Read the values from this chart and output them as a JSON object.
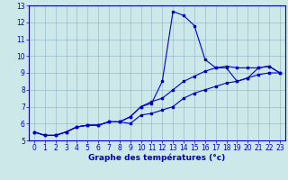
{
  "title": "Graphe des températures (°c)",
  "bg_color": "#cce8e8",
  "grid_color": "#99bbcc",
  "line_color": "#0000cc",
  "spine_color": "#0000cc",
  "xlim": [
    -0.5,
    23.5
  ],
  "ylim": [
    5,
    13
  ],
  "xticks": [
    0,
    1,
    2,
    3,
    4,
    5,
    6,
    7,
    8,
    9,
    10,
    11,
    12,
    13,
    14,
    15,
    16,
    17,
    18,
    19,
    20,
    21,
    22,
    23
  ],
  "yticks": [
    5,
    6,
    7,
    8,
    9,
    10,
    11,
    12,
    13
  ],
  "line1_x": [
    0,
    1,
    2,
    3,
    4,
    5,
    6,
    7,
    8,
    9,
    10,
    11,
    12,
    13,
    14,
    15,
    16,
    17,
    18,
    19,
    20,
    21,
    22,
    23
  ],
  "line1_y": [
    5.5,
    5.3,
    5.3,
    5.5,
    5.8,
    5.9,
    5.9,
    6.1,
    6.1,
    6.4,
    7.0,
    7.2,
    8.5,
    12.65,
    12.4,
    11.8,
    9.8,
    9.3,
    9.3,
    8.5,
    8.7,
    9.3,
    9.4,
    9.0
  ],
  "line2_x": [
    0,
    1,
    2,
    3,
    4,
    5,
    6,
    7,
    8,
    9,
    10,
    11,
    12,
    13,
    14,
    15,
    16,
    17,
    18,
    19,
    20,
    21,
    22,
    23
  ],
  "line2_y": [
    5.5,
    5.3,
    5.3,
    5.5,
    5.8,
    5.9,
    5.9,
    6.1,
    6.1,
    6.4,
    7.0,
    7.3,
    7.5,
    8.0,
    8.5,
    8.8,
    9.1,
    9.3,
    9.4,
    9.3,
    9.3,
    9.3,
    9.4,
    9.0
  ],
  "line3_x": [
    0,
    1,
    2,
    3,
    4,
    5,
    6,
    7,
    8,
    9,
    10,
    11,
    12,
    13,
    14,
    15,
    16,
    17,
    18,
    19,
    20,
    21,
    22,
    23
  ],
  "line3_y": [
    5.5,
    5.3,
    5.3,
    5.5,
    5.8,
    5.9,
    5.9,
    6.1,
    6.1,
    6.0,
    6.5,
    6.6,
    6.8,
    7.0,
    7.5,
    7.8,
    8.0,
    8.2,
    8.4,
    8.5,
    8.7,
    8.9,
    9.0,
    9.0
  ],
  "xlabel_fontsize": 6.5,
  "tick_fontsize": 5.5,
  "linewidth": 0.8,
  "markersize": 1.8
}
